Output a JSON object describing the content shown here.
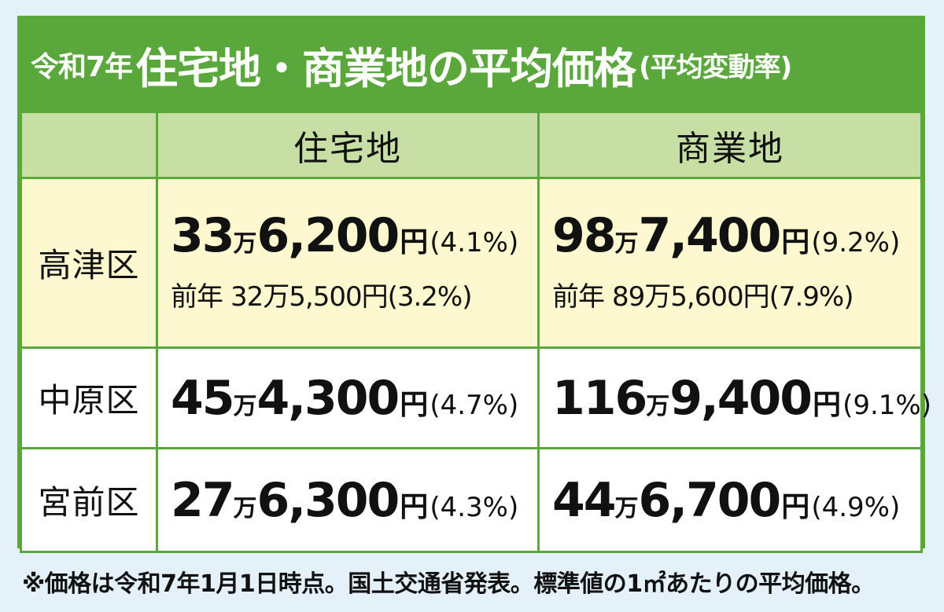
{
  "title": {
    "prefix": "令和7年",
    "main": "住宅地・商業地の平均価格",
    "suffix": "(平均変動率)"
  },
  "columns": {
    "residential": "住宅地",
    "commercial": "商業地"
  },
  "units": {
    "man": "万",
    "yen": "円"
  },
  "rows": [
    {
      "ward": "高津区",
      "residential": {
        "man": "33",
        "rest": "6,200",
        "rate": "(4.1%)",
        "previous_label": "前年",
        "previous_value": "32万5,500円(3.2%)"
      },
      "commercial": {
        "man": "98",
        "rest": "7,400",
        "rate": "(9.2%)",
        "previous_label": "前年",
        "previous_value": "89万5,600円(7.9%)"
      }
    },
    {
      "ward": "中原区",
      "residential": {
        "man": "45",
        "rest": "4,300",
        "rate": "(4.7%)"
      },
      "commercial": {
        "man": "116",
        "rest": "9,400",
        "rate": "(9.1%)"
      }
    },
    {
      "ward": "宮前区",
      "residential": {
        "man": "27",
        "rest": "6,300",
        "rate": "(4.3%)"
      },
      "commercial": {
        "man": "44",
        "rest": "6,700",
        "rate": "(4.9%)"
      }
    }
  ],
  "footnote": "※価格は令和7年1月1日時点。国土交通省発表。標準値の1㎡あたりの平均価格。",
  "colors": {
    "frame_green": "#5aa83b",
    "header_green": "#c7dfa4",
    "highlight_yellow": "#fdf8cf",
    "background": "#e4f1f8"
  }
}
